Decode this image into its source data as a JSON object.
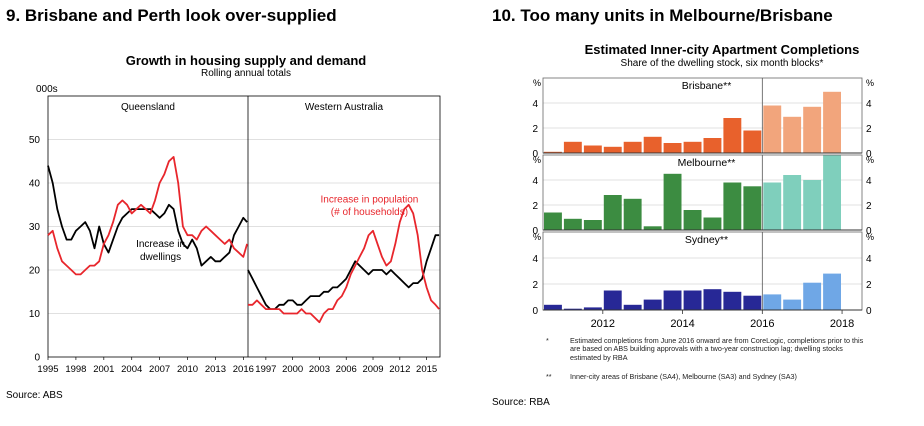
{
  "left": {
    "heading": "9. Brisbane and Perth look over-supplied",
    "title": "Growth in housing supply and demand",
    "subtitle": "Rolling annual totals",
    "unit": "000s",
    "source": "Source: ABS"
  },
  "right": {
    "heading": "10. Too many units in Melbourne/Brisbane",
    "title": "Estimated Inner-city Apartment Completions",
    "subtitle": "Share of the dwelling stock, six month blocks*",
    "source": "Source: RBA",
    "footnote1_mark": "*",
    "footnote1": "Estimated completions from June 2016 onward are from CoreLogic, completions prior to this are based on ABS building approvals with a two-year construction lag; dwelling stocks estimated by RBA",
    "footnote2_mark": "**",
    "footnote2": "Inner-city areas of Brisbane (SA4), Melbourne (SA3) and Sydney (SA3)"
  },
  "chart_data": [
    {
      "type": "line",
      "title": "Growth in housing supply and demand",
      "subtitle": "Rolling annual totals",
      "ylabel": "000s",
      "ylim": [
        0,
        60
      ],
      "yticks": [
        0,
        10,
        20,
        30,
        40,
        50
      ],
      "panels": [
        {
          "name": "Queensland",
          "xlim": [
            1995,
            2016.5
          ],
          "xticks": [
            1995,
            1998,
            2001,
            2004,
            2007,
            2010,
            2013,
            2016
          ],
          "series": [
            {
              "name": "Increase in dwellings",
              "color": "#000000",
              "x": [
                1995,
                1995.5,
                1996,
                1996.5,
                1997,
                1997.5,
                1998,
                1998.5,
                1999,
                1999.5,
                2000,
                2000.5,
                2001,
                2001.5,
                2002,
                2002.5,
                2003,
                2003.5,
                2004,
                2004.5,
                2005,
                2005.5,
                2006,
                2006.5,
                2007,
                2007.5,
                2008,
                2008.5,
                2009,
                2009.5,
                2010,
                2010.5,
                2011,
                2011.5,
                2012,
                2012.5,
                2013,
                2013.5,
                2014,
                2014.5,
                2015,
                2015.5,
                2016,
                2016.4
              ],
              "y": [
                44,
                40,
                34,
                30,
                27,
                27,
                29,
                30,
                31,
                29,
                25,
                30,
                26,
                24,
                27,
                30,
                32,
                33,
                34,
                34,
                34,
                34,
                34,
                33,
                32,
                33,
                35,
                34,
                29,
                26,
                25,
                27,
                25,
                21,
                22,
                23,
                22,
                22,
                23,
                24,
                28,
                30,
                32,
                31
              ]
            },
            {
              "name": "Increase in population (# of households)",
              "color": "#e8262c",
              "x": [
                1995,
                1995.5,
                1996,
                1996.5,
                1997,
                1997.5,
                1998,
                1998.5,
                1999,
                1999.5,
                2000,
                2000.5,
                2001,
                2001.5,
                2002,
                2002.5,
                2003,
                2003.5,
                2004,
                2004.5,
                2005,
                2005.5,
                2006,
                2006.5,
                2007,
                2007.5,
                2008,
                2008.5,
                2009,
                2009.5,
                2010,
                2010.5,
                2011,
                2011.5,
                2012,
                2012.5,
                2013,
                2013.5,
                2014,
                2014.5,
                2015,
                2015.5,
                2016,
                2016.4
              ],
              "y": [
                28,
                29,
                25,
                22,
                21,
                20,
                19,
                19,
                20,
                21,
                21,
                22,
                26,
                28,
                31,
                35,
                36,
                35,
                33,
                34,
                35,
                34,
                33,
                36,
                40,
                42,
                45,
                46,
                40,
                30,
                28,
                28,
                27,
                29,
                30,
                29,
                28,
                27,
                26,
                27,
                25,
                24,
                23,
                26
              ]
            }
          ],
          "annotations": [
            "Increase in dwellings"
          ]
        },
        {
          "name": "Western Australia",
          "xlim": [
            1995,
            2016.5
          ],
          "xticks": [
            1997,
            2000,
            2003,
            2006,
            2009,
            2012,
            2015
          ],
          "series": [
            {
              "name": "Increase in dwellings",
              "color": "#000000",
              "x": [
                1995,
                1995.5,
                1996,
                1996.5,
                1997,
                1997.5,
                1998,
                1998.5,
                1999,
                1999.5,
                2000,
                2000.5,
                2001,
                2001.5,
                2002,
                2002.5,
                2003,
                2003.5,
                2004,
                2004.5,
                2005,
                2005.5,
                2006,
                2006.5,
                2007,
                2007.5,
                2008,
                2008.5,
                2009,
                2009.5,
                2010,
                2010.5,
                2011,
                2011.5,
                2012,
                2012.5,
                2013,
                2013.5,
                2014,
                2014.5,
                2015,
                2015.5,
                2016,
                2016.4
              ],
              "y": [
                20,
                18,
                16,
                14,
                12,
                11,
                11,
                12,
                12,
                13,
                13,
                12,
                12,
                13,
                14,
                14,
                14,
                15,
                15,
                16,
                16,
                17,
                18,
                20,
                22,
                21,
                20,
                19,
                20,
                20,
                20,
                19,
                20,
                19,
                18,
                17,
                16,
                17,
                17,
                18,
                22,
                25,
                28,
                28
              ]
            },
            {
              "name": "Increase in population (# of households)",
              "color": "#e8262c",
              "x": [
                1995,
                1995.5,
                1996,
                1996.5,
                1997,
                1997.5,
                1998,
                1998.5,
                1999,
                1999.5,
                2000,
                2000.5,
                2001,
                2001.5,
                2002,
                2002.5,
                2003,
                2003.5,
                2004,
                2004.5,
                2005,
                2005.5,
                2006,
                2006.5,
                2007,
                2007.5,
                2008,
                2008.5,
                2009,
                2009.5,
                2010,
                2010.5,
                2011,
                2011.5,
                2012,
                2012.5,
                2013,
                2013.5,
                2014,
                2014.5,
                2015,
                2015.5,
                2016,
                2016.4
              ],
              "y": [
                12,
                12,
                13,
                12,
                11,
                11,
                11,
                11,
                10,
                10,
                10,
                10,
                11,
                10,
                10,
                9,
                8,
                10,
                11,
                11,
                13,
                14,
                16,
                19,
                21,
                23,
                25,
                28,
                29,
                26,
                23,
                21,
                22,
                26,
                31,
                34,
                35,
                33,
                28,
                20,
                16,
                13,
                12,
                11
              ]
            }
          ],
          "annotations": [
            "Increase in population",
            "(# of households)"
          ]
        }
      ],
      "grid": true,
      "legend": "none"
    },
    {
      "type": "bar",
      "title": "Estimated Inner-city Apartment Completions",
      "subtitle": "Share of the dwelling stock, six month blocks*",
      "ylabel": "%",
      "ylim": [
        0,
        6
      ],
      "yticks": [
        0,
        2,
        4
      ],
      "xlim": [
        2010.5,
        2018.5
      ],
      "xticks": [
        2012,
        2014,
        2016,
        2018
      ],
      "forecast_from": 2016,
      "categories": [
        2010.75,
        2011.25,
        2011.75,
        2012.25,
        2012.75,
        2013.25,
        2013.75,
        2014.25,
        2014.75,
        2015.25,
        2015.75,
        2016.25,
        2016.75,
        2017.25,
        2017.75
      ],
      "series": [
        {
          "name": "Brisbane**",
          "color": "#e8612c",
          "forecast_color": "#f2a57c",
          "values": [
            0.1,
            0.9,
            0.6,
            0.5,
            0.9,
            1.3,
            0.8,
            0.9,
            1.2,
            2.8,
            1.8,
            3.8,
            2.9,
            3.7,
            4.9
          ]
        },
        {
          "name": "Melbourne**",
          "color": "#3c8c41",
          "forecast_color": "#7fcfbc",
          "values": [
            1.4,
            0.9,
            0.8,
            2.8,
            2.5,
            0.3,
            4.5,
            1.6,
            1.0,
            3.8,
            3.5,
            3.8,
            4.4,
            4.0,
            6.0
          ]
        },
        {
          "name": "Sydney**",
          "color": "#272896",
          "forecast_color": "#6fa7e6",
          "values": [
            0.4,
            0.1,
            0.2,
            1.5,
            0.4,
            0.8,
            1.5,
            1.5,
            1.6,
            1.4,
            1.1,
            1.2,
            0.8,
            2.1,
            2.8
          ]
        }
      ],
      "grid": true,
      "legend": "none"
    }
  ]
}
